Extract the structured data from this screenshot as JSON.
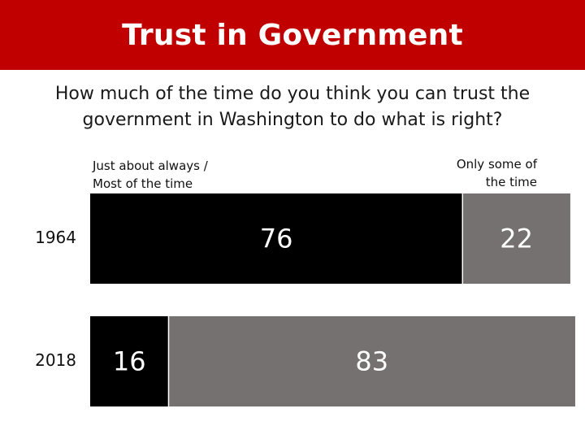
{
  "header": {
    "title": "Trust in Government"
  },
  "subtitle": {
    "line1": "How much of the time do you think you can trust the",
    "line2": "government in Washington to do what is right?"
  },
  "legend": {
    "left_line1": "Just about always /",
    "left_line2": "Most of the time",
    "right_line1": "Only some of",
    "right_line2": "the time"
  },
  "colors": {
    "header_bg": "#c00000",
    "always_most": "#000000",
    "some_of_time": "#767171"
  },
  "chart_data": {
    "type": "bar",
    "orientation": "horizontal",
    "stacked": true,
    "categories": [
      "1964",
      "2018"
    ],
    "series": [
      {
        "name": "Just about always / Most of the time",
        "values": [
          76,
          16
        ],
        "color": "#000000"
      },
      {
        "name": "Only some of the time",
        "values": [
          22,
          83
        ],
        "color": "#767171"
      }
    ],
    "title": "Trust in Government",
    "xlim": [
      0,
      100
    ],
    "legend_placement": "top",
    "grid": false
  }
}
